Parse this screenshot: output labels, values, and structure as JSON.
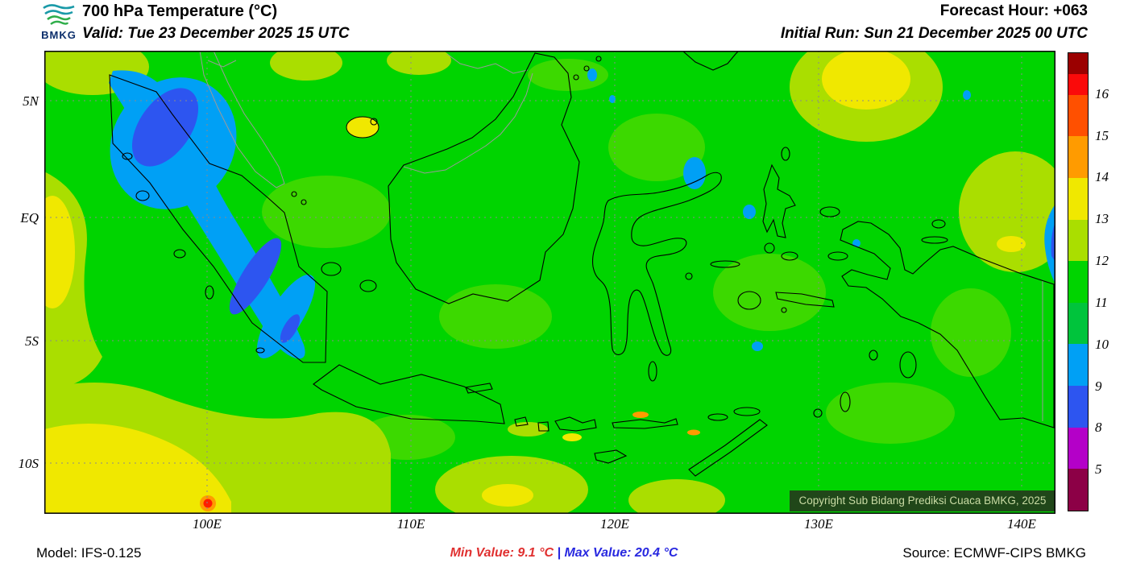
{
  "header": {
    "logo_text": "BMKG",
    "title": "700 hPa Temperature (°C)",
    "valid": "Valid: Tue 23 December 2025 15 UTC",
    "forecast_hour": "Forecast Hour: +063",
    "initial_run": "Initial Run: Sun 21 December 2025 00 UTC"
  },
  "map": {
    "lat_labels": [
      "5N",
      "EQ",
      "5S",
      "10S"
    ],
    "lon_labels": [
      "100E",
      "110E",
      "120E",
      "130E",
      "140E"
    ],
    "copyright": "Copyright Sub Bidang Prediksi Cuaca BMKG, 2025"
  },
  "colorbar": {
    "unit": "°C",
    "labels": [
      "16",
      "15",
      "14",
      "13",
      "12",
      "11",
      "10",
      "9",
      "8",
      "5"
    ],
    "segments": [
      {
        "name": "dark-red",
        "color": "#9b0000",
        "span": 0.5
      },
      {
        "name": "red",
        "color": "#fa0a0a",
        "span": 0.5
      },
      {
        "name": "orange-red",
        "color": "#ff5000",
        "span": 1
      },
      {
        "name": "orange",
        "color": "#ff9b00",
        "span": 1
      },
      {
        "name": "yellow",
        "color": "#f0e800",
        "span": 1
      },
      {
        "name": "yellow-green",
        "color": "#aade00",
        "span": 1
      },
      {
        "name": "green",
        "color": "#00d400",
        "span": 1
      },
      {
        "name": "green-2",
        "color": "#00c43c",
        "span": 1
      },
      {
        "name": "light-blue",
        "color": "#00a0f5",
        "span": 1
      },
      {
        "name": "blue",
        "color": "#2d55f0",
        "span": 1
      },
      {
        "name": "magenta",
        "color": "#b400c8",
        "span": 1
      },
      {
        "name": "dark-maroon",
        "color": "#8c0046",
        "span": 1
      }
    ]
  },
  "footer": {
    "model": "Model: IFS-0.125",
    "min_text": "Min Value: 9.1 °C",
    "separator": "|",
    "max_text": "Max Value: 20.4 °C",
    "source": "Source: ECMWF-CIPS BMKG",
    "min_color": "#e03030",
    "max_color": "#2828e0"
  }
}
